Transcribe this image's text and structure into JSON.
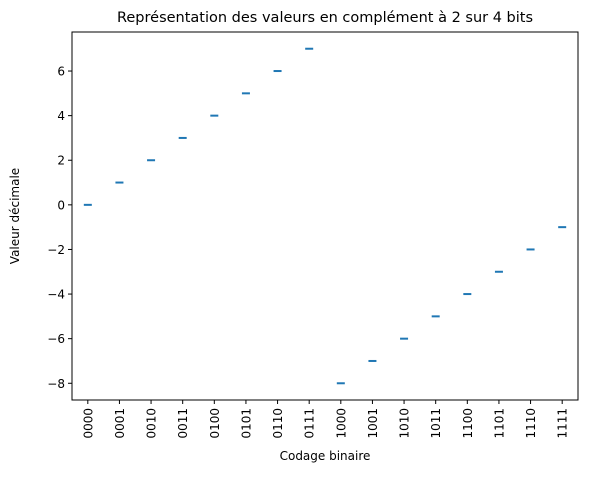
{
  "chart_data": {
    "type": "scatter",
    "title": "Représentation des valeurs en complément à 2 sur 4 bits",
    "xlabel": "Codage binaire",
    "ylabel": "Valeur décimale",
    "categories": [
      "0000",
      "0001",
      "0010",
      "0011",
      "0100",
      "0101",
      "0110",
      "0111",
      "1000",
      "1001",
      "1010",
      "1011",
      "1100",
      "1101",
      "1110",
      "1111"
    ],
    "values": [
      0,
      1,
      2,
      3,
      4,
      5,
      6,
      7,
      -8,
      -7,
      -6,
      -5,
      -4,
      -3,
      -2,
      -1
    ],
    "marker": "horizontal-dash",
    "color": "#1f77b4",
    "ylim": [
      -8.75,
      7.75
    ],
    "yticks": [
      -8,
      -6,
      -4,
      -2,
      0,
      2,
      4,
      6
    ],
    "ytick_labels": [
      "−8",
      "−6",
      "−4",
      "−2",
      "0",
      "2",
      "4",
      "6"
    ],
    "grid": false,
    "legend": "none"
  }
}
